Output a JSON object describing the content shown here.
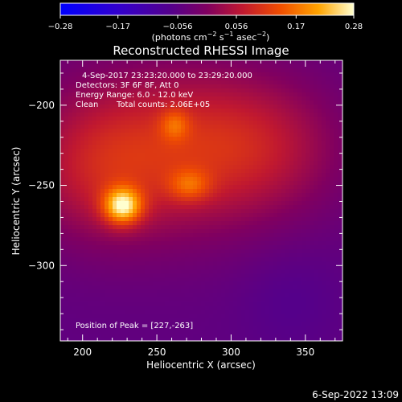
{
  "chart_data": {
    "type": "heatmap",
    "title": "Reconstructed RHESSI Image",
    "xlabel": "Heliocentric X (arcsec)",
    "ylabel": "Heliocentric Y (arcsec)",
    "xlim": [
      185,
      375
    ],
    "ylim": [
      -347,
      -172
    ],
    "xticks": [
      {
        "value": 200,
        "label": "200"
      },
      {
        "value": 250,
        "label": "250"
      },
      {
        "value": 300,
        "label": "300"
      },
      {
        "value": 350,
        "label": "350"
      }
    ],
    "yticks": [
      {
        "value": -200,
        "label": "−200"
      },
      {
        "value": -250,
        "label": "−250"
      },
      {
        "value": -300,
        "label": "−300"
      }
    ],
    "colorbar": {
      "range": [
        -0.28,
        0.28
      ],
      "ticks": [
        {
          "value": -0.28,
          "label": "−0.28"
        },
        {
          "value": -0.17,
          "label": "−0.17"
        },
        {
          "value": -0.056,
          "label": "−0.056"
        },
        {
          "value": 0.056,
          "label": "0.056"
        },
        {
          "value": 0.17,
          "label": "0.17"
        },
        {
          "value": 0.28,
          "label": "0.28"
        }
      ],
      "units_parts": [
        "(photons cm",
        "−2",
        " s",
        "−1",
        " asec",
        "−2",
        ")"
      ]
    },
    "annotations": {
      "time_range": "4-Sep-2017 23:23:20.000 to 23:29:20.000",
      "detectors": "Detectors: 3F 6F 8F, Att 0",
      "energy": "Energy Range: 6.0 - 12.0 keV",
      "method": "Clean",
      "counts": "Total counts: 2.06E+05",
      "peak": "Position of Peak = [227,-263]"
    },
    "sources": [
      {
        "x": 227,
        "y": -263,
        "peak": 0.28
      },
      {
        "x": 272,
        "y": -250,
        "peak": 0.19
      },
      {
        "x": 262,
        "y": -212,
        "peak": 0.18
      }
    ]
  },
  "footer": {
    "timestamp": "6-Sep-2022 13:09"
  }
}
